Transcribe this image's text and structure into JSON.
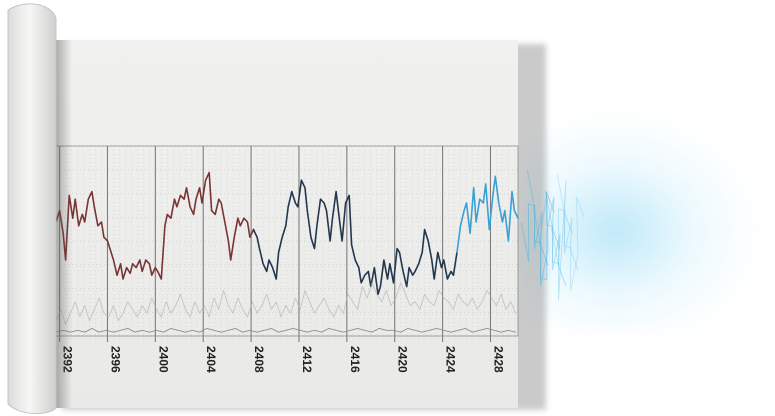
{
  "chart_data": {
    "type": "line",
    "title": "",
    "xlabel": "",
    "ylabel": "",
    "x_ticks": [
      "2392",
      "2396",
      "2400",
      "2404",
      "2408",
      "2412",
      "2416",
      "2420",
      "2424",
      "2428"
    ],
    "xlim": [
      2391.7,
      2430.3
    ],
    "ylim": [
      0,
      100
    ],
    "grid": true,
    "series": [
      {
        "color": "#7a3434",
        "x": [
          2391.7,
          2392.0,
          2392.3,
          2392.5,
          2392.8,
          2393.1,
          2393.3,
          2393.6,
          2393.9,
          2394.1,
          2394.4,
          2394.7,
          2394.9,
          2395.2,
          2395.5,
          2395.7,
          2396.0,
          2396.3,
          2396.5,
          2396.8,
          2397.1,
          2397.3,
          2397.6,
          2397.9,
          2398.1,
          2398.4,
          2398.7,
          2398.9,
          2399.2,
          2399.5,
          2399.7,
          2400.0,
          2400.2,
          2400.5,
          2400.8,
          2401.0,
          2401.3,
          2401.6,
          2401.8,
          2402.1,
          2402.4,
          2402.6,
          2402.9,
          2403.2,
          2403.4,
          2403.7,
          2403.9,
          2404.2,
          2404.5,
          2404.7,
          2405.0,
          2405.3,
          2405.5,
          2405.8,
          2406.1,
          2406.3,
          2406.6,
          2406.9,
          2407.1,
          2407.4,
          2407.7,
          2407.9,
          2408.2
        ],
        "y": [
          60,
          66,
          54,
          40,
          74,
          62,
          72,
          58,
          64,
          60,
          72,
          76,
          68,
          58,
          60,
          52,
          50,
          44,
          40,
          32,
          38,
          30,
          36,
          33,
          38,
          36,
          40,
          34,
          40,
          38,
          32,
          36,
          34,
          30,
          58,
          64,
          62,
          72,
          68,
          74,
          72,
          78,
          68,
          64,
          72,
          78,
          70,
          82,
          86,
          66,
          64,
          72,
          70,
          60,
          50,
          40,
          52,
          62,
          58,
          62,
          60,
          52,
          56
        ]
      },
      {
        "color": "#23364e",
        "x": [
          2408.2,
          2408.5,
          2408.7,
          2409.0,
          2409.3,
          2409.5,
          2409.8,
          2410.1,
          2410.3,
          2410.6,
          2410.9,
          2411.1,
          2411.4,
          2411.7,
          2411.9,
          2412.2,
          2412.5,
          2412.7,
          2413.0,
          2413.3,
          2413.5,
          2413.8,
          2414.1,
          2414.3,
          2414.6,
          2414.8,
          2415.1,
          2415.4,
          2415.6,
          2415.9,
          2416.2,
          2416.4,
          2416.7,
          2417.0,
          2417.2,
          2417.5,
          2417.8,
          2418.0,
          2418.3,
          2418.6,
          2418.8,
          2419.1,
          2419.4,
          2419.6,
          2419.9,
          2420.2,
          2420.4,
          2420.7,
          2421.0,
          2421.2,
          2421.5,
          2421.7,
          2422.0,
          2422.3,
          2422.5,
          2422.8,
          2423.1,
          2423.3,
          2423.6,
          2423.9,
          2424.1,
          2424.4,
          2424.7,
          2424.9,
          2425.2
        ],
        "y": [
          56,
          52,
          46,
          38,
          34,
          40,
          36,
          30,
          44,
          52,
          58,
          68,
          76,
          70,
          68,
          82,
          78,
          66,
          52,
          46,
          58,
          72,
          70,
          66,
          50,
          62,
          76,
          60,
          50,
          70,
          74,
          48,
          40,
          36,
          28,
          32,
          34,
          26,
          36,
          22,
          26,
          40,
          30,
          38,
          28,
          46,
          44,
          34,
          26,
          36,
          32,
          34,
          38,
          44,
          56,
          50,
          40,
          30,
          44,
          36,
          40,
          30,
          34,
          32,
          44
        ],
        "connect_to_previous": true
      },
      {
        "color": "#3aa0d6",
        "x": [
          2425.2,
          2425.5,
          2425.8,
          2426.0,
          2426.3,
          2426.6,
          2426.8,
          2427.1,
          2427.4,
          2427.6,
          2427.9,
          2428.2,
          2428.4,
          2428.7,
          2429.0,
          2429.2,
          2429.5,
          2429.8,
          2430.0,
          2430.3
        ],
        "y": [
          44,
          58,
          66,
          70,
          54,
          78,
          60,
          72,
          70,
          80,
          56,
          74,
          84,
          70,
          60,
          66,
          50,
          76,
          66,
          62
        ],
        "connect_to_previous": true
      },
      {
        "color": "#b3b3b3",
        "role": "faint-background",
        "x": [
          2391.7,
          2392.1,
          2392.5,
          2392.9,
          2393.3,
          2393.7,
          2394.1,
          2394.5,
          2394.9,
          2395.3,
          2395.7,
          2396.1,
          2396.5,
          2396.9,
          2397.3,
          2397.7,
          2398.1,
          2398.5,
          2398.9,
          2399.3,
          2399.7,
          2400.1,
          2400.5,
          2400.9,
          2401.3,
          2401.7,
          2402.1,
          2402.5,
          2402.9,
          2403.3,
          2403.7,
          2404.1,
          2404.5,
          2404.9,
          2405.3,
          2405.7,
          2406.1,
          2406.5,
          2406.9,
          2407.3,
          2407.7,
          2408.1,
          2408.5,
          2408.9,
          2409.3,
          2409.7,
          2410.1,
          2410.5,
          2410.9,
          2411.3,
          2411.7,
          2412.1,
          2412.5,
          2412.9,
          2413.3,
          2413.7,
          2414.1,
          2414.5,
          2414.9,
          2415.3,
          2415.7,
          2416.1,
          2416.5,
          2416.9,
          2417.3,
          2417.7,
          2418.1,
          2418.5,
          2418.9,
          2419.3,
          2419.7,
          2420.1,
          2420.5,
          2420.9,
          2421.3,
          2421.7,
          2422.1,
          2422.5,
          2422.9,
          2423.3,
          2423.7,
          2424.1,
          2424.5,
          2424.9,
          2425.3,
          2425.7,
          2426.1,
          2426.5,
          2426.9,
          2427.3,
          2427.7,
          2428.1,
          2428.5,
          2428.9,
          2429.3,
          2429.7,
          2430.1
        ],
        "y": [
          8,
          14,
          6,
          12,
          18,
          10,
          16,
          8,
          14,
          20,
          12,
          10,
          16,
          8,
          12,
          18,
          14,
          10,
          16,
          12,
          20,
          14,
          10,
          18,
          12,
          16,
          22,
          14,
          10,
          18,
          12,
          16,
          10,
          20,
          14,
          24,
          16,
          12,
          20,
          14,
          10,
          18,
          12,
          16,
          22,
          14,
          18,
          10,
          16,
          12,
          20,
          14,
          24,
          18,
          12,
          16,
          20,
          14,
          10,
          16,
          12,
          22,
          18,
          14,
          26,
          20,
          28,
          22,
          18,
          24,
          16,
          20,
          28,
          22,
          16,
          18,
          14,
          22,
          18,
          16,
          24,
          20,
          18,
          14,
          22,
          18,
          16,
          20,
          14,
          18,
          24,
          20,
          16,
          22,
          14,
          18,
          12
        ]
      },
      {
        "color": "#8f8f8f",
        "role": "baseline",
        "x": [
          2391.7,
          2392.3,
          2392.9,
          2393.5,
          2394.1,
          2394.7,
          2395.3,
          2395.9,
          2396.5,
          2397.1,
          2397.7,
          2398.3,
          2398.9,
          2399.5,
          2400.1,
          2400.7,
          2401.3,
          2401.9,
          2402.5,
          2403.1,
          2403.7,
          2404.3,
          2404.9,
          2405.5,
          2406.1,
          2406.7,
          2407.3,
          2407.9,
          2408.5,
          2409.1,
          2409.7,
          2410.3,
          2410.9,
          2411.5,
          2412.1,
          2412.7,
          2413.3,
          2413.9,
          2414.5,
          2415.1,
          2415.7,
          2416.3,
          2416.9,
          2417.5,
          2418.1,
          2418.7,
          2419.3,
          2419.9,
          2420.5,
          2421.1,
          2421.7,
          2422.3,
          2422.9,
          2423.5,
          2424.1,
          2424.7,
          2425.3,
          2425.9,
          2426.5,
          2427.1,
          2427.7,
          2428.3,
          2428.9,
          2429.5,
          2430.1
        ],
        "y": [
          2,
          3,
          2,
          3,
          2,
          4,
          2,
          3,
          2,
          3,
          4,
          2,
          3,
          2,
          3,
          2,
          4,
          3,
          2,
          3,
          2,
          4,
          3,
          2,
          3,
          4,
          2,
          3,
          2,
          3,
          4,
          2,
          3,
          4,
          3,
          2,
          3,
          2,
          4,
          3,
          2,
          3,
          4,
          3,
          2,
          4,
          3,
          3,
          2,
          4,
          3,
          2,
          3,
          4,
          3,
          2,
          3,
          4,
          2,
          3,
          4,
          3,
          2,
          3,
          2
        ]
      }
    ]
  }
}
